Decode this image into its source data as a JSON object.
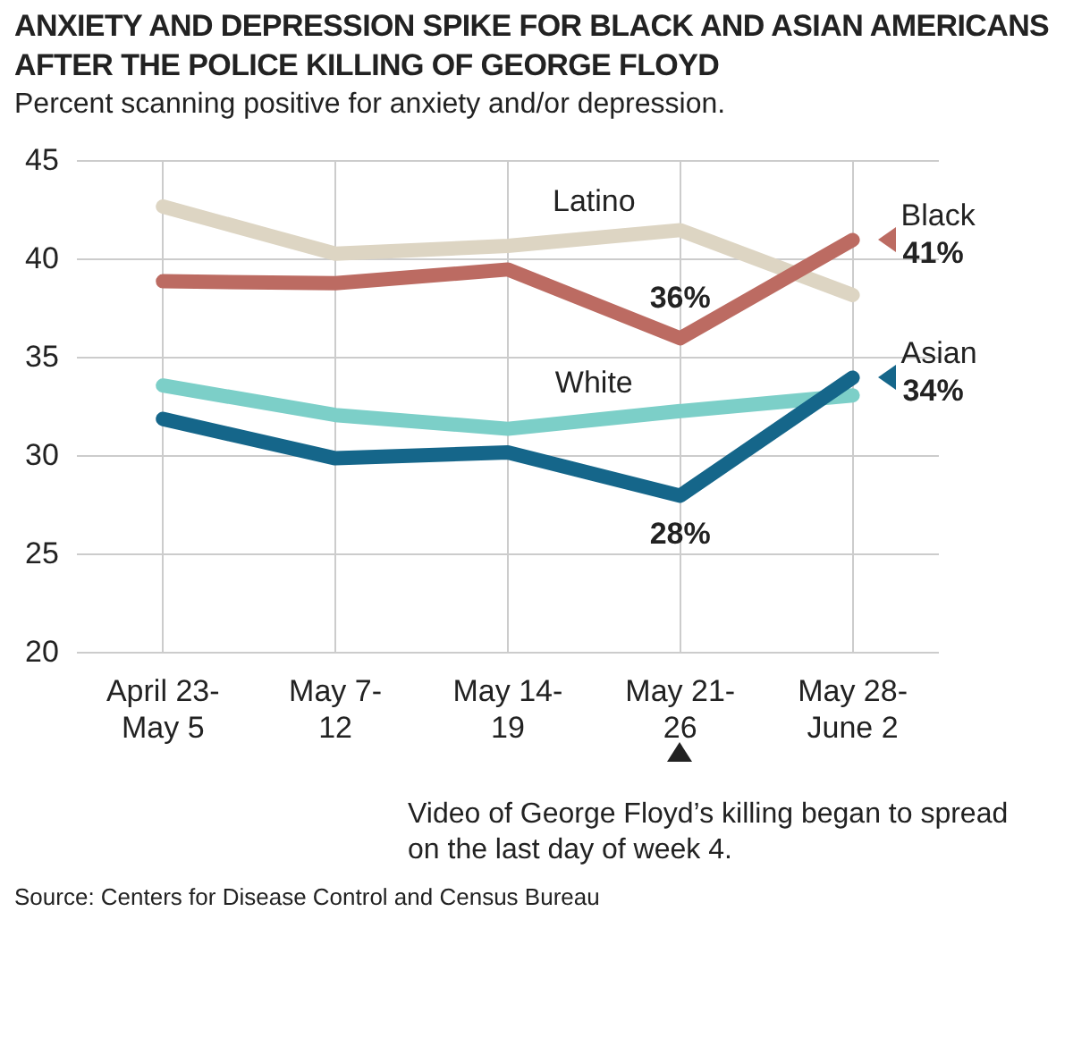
{
  "chart_data": {
    "type": "line",
    "title": "ANXIETY AND DEPRESSION SPIKE FOR BLACK AND ASIAN AMERICANS AFTER THE POLICE KILLING OF GEORGE FLOYD",
    "subtitle": "Percent scanning positive for anxiety and/or depression.",
    "categories": [
      "April 23-May 5",
      "May 7-12",
      "May 14-19",
      "May 21-26",
      "May 28-June 2"
    ],
    "series": [
      {
        "name": "Latino",
        "color": "#ddd5c3",
        "values": [
          42.7,
          40.3,
          40.7,
          41.5,
          38.2
        ]
      },
      {
        "name": "Black",
        "color": "#bc6b62",
        "values": [
          38.9,
          38.8,
          39.5,
          36,
          41
        ],
        "value_labels": [
          null,
          null,
          null,
          "36%",
          "41%"
        ]
      },
      {
        "name": "White",
        "color": "#7ccfc8",
        "values": [
          33.6,
          32.1,
          31.4,
          32.3,
          33.1
        ]
      },
      {
        "name": "Asian",
        "color": "#15668a",
        "values": [
          31.9,
          29.9,
          30.2,
          28,
          34
        ],
        "value_labels": [
          null,
          null,
          null,
          "28%",
          "34%"
        ]
      }
    ],
    "ylim": [
      20,
      45
    ],
    "yticks": [
      20,
      25,
      30,
      35,
      40,
      45
    ],
    "grid": true,
    "legend": false,
    "marker": "none",
    "line_style": "solid",
    "annotations": [
      "Video of George Floyd’s killing began to spread on the last day of week 4.",
      "Source: Centers for Disease Control and Census Bureau"
    ]
  }
}
